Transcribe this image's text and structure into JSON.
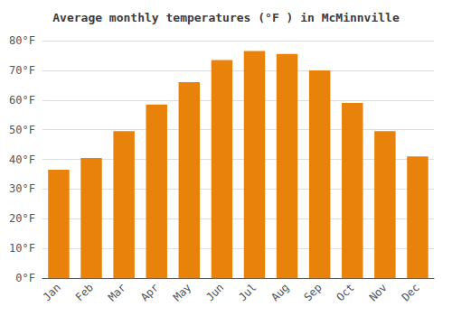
{
  "chart_data": {
    "type": "bar",
    "title": "Average monthly temperatures (°F ) in McMinnville",
    "categories": [
      "Jan",
      "Feb",
      "Mar",
      "Apr",
      "May",
      "Jun",
      "Jul",
      "Aug",
      "Sep",
      "Oct",
      "Nov",
      "Dec"
    ],
    "values": [
      36.5,
      40.5,
      49.5,
      58.5,
      66.0,
      73.5,
      76.5,
      75.5,
      70.0,
      59.0,
      49.5,
      41.0
    ],
    "color": "#E8820A",
    "ylim": [
      0,
      80
    ],
    "yticks": [
      {
        "value": 0,
        "label": "0°F"
      },
      {
        "value": 10,
        "label": "10°F"
      },
      {
        "value": 20,
        "label": "20°F"
      },
      {
        "value": 30,
        "label": "30°F"
      },
      {
        "value": 40,
        "label": "40°F"
      },
      {
        "value": 50,
        "label": "50°F"
      },
      {
        "value": 60,
        "label": "60°F"
      },
      {
        "value": 70,
        "label": "70°F"
      },
      {
        "value": 80,
        "label": "80°F"
      }
    ],
    "grid": true
  }
}
